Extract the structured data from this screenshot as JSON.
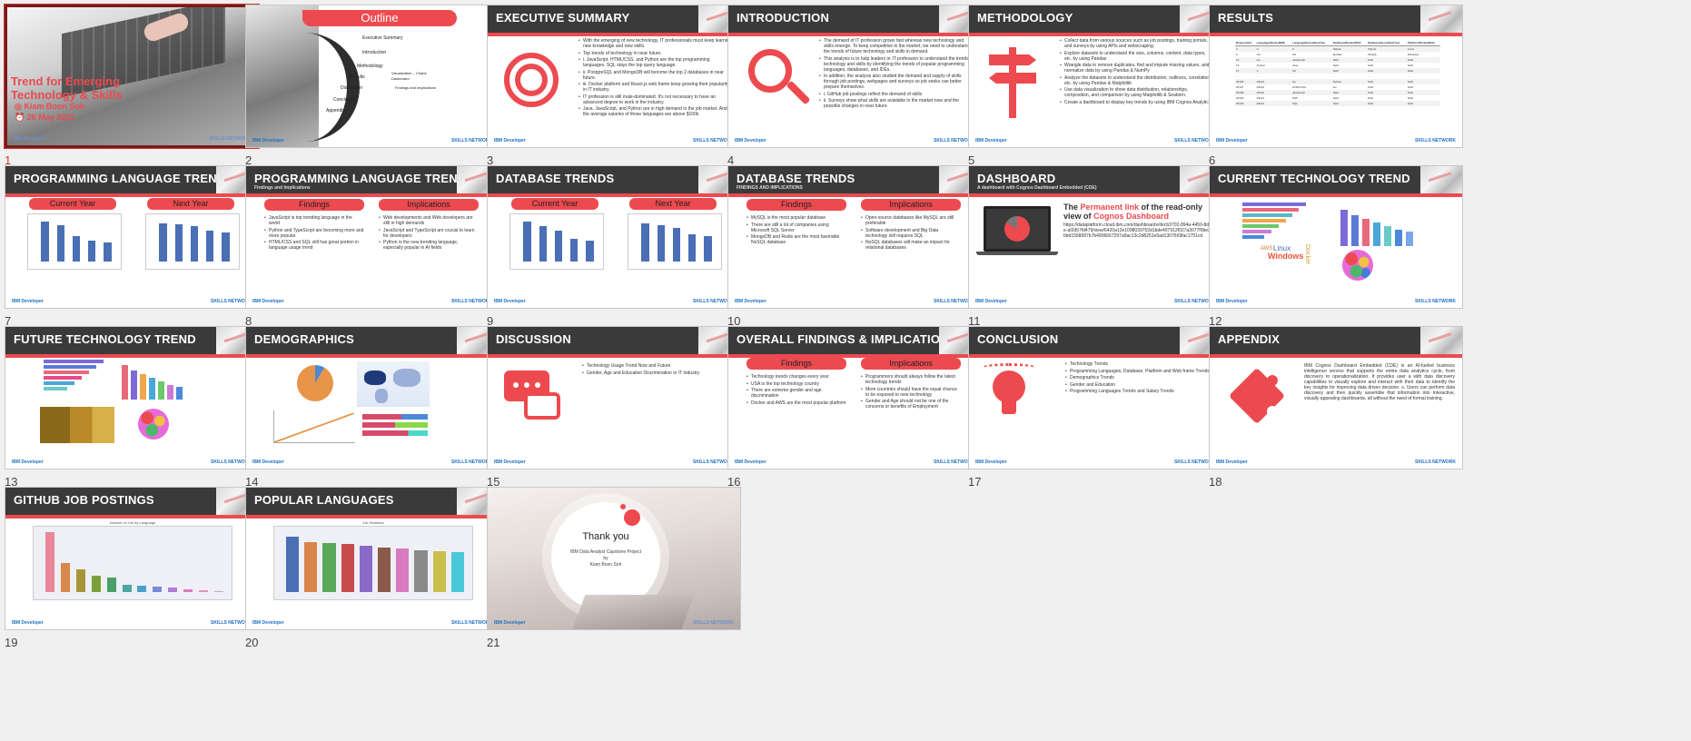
{
  "footer": {
    "ibm": "IBM Developer",
    "skills": "SKILLS NETWORK"
  },
  "colors": {
    "accent": "#ec4a4f",
    "header": "#3a3a3a",
    "selection": "#7a1a1a"
  },
  "slides": {
    "s1": {
      "number": "1",
      "title": "Trend for Emerging Technology & Skills",
      "author": "Kiam Boon Soh",
      "date": "26 May 2021"
    },
    "s2": {
      "number": "2",
      "title": "Outline",
      "items": [
        "Executive Summary",
        "Introduction",
        "Methodology",
        "Results",
        "Visualization – Charts",
        "Dashboard",
        "Discussion",
        "Findings and Implications",
        "Conclusion",
        "Appendix"
      ]
    },
    "s3": {
      "number": "3",
      "title": "EXECUTIVE SUMMARY",
      "icon": "target-icon",
      "bullets": [
        "With the emerging of new technology, IT professionals must keep learning new knowledge and new skills.",
        "Top trends of technology in near future.",
        "i. JavaScript, HTML/CSS, and Python are the top programming languages. SQL stays the top query language.",
        "ii. PostgreSQL and MongoDB will become the top 2 databases in near future.",
        "iii. Docker platform and React.js web frame keep growing their popularity in IT industry.",
        "IT profession is still male-dominated. It's not necessary to have an advanced degree to work in the industry.",
        "Java, JavaScript, and Python are in high demand in the job market. And the average salaries of those languages are above $100k."
      ]
    },
    "s4": {
      "number": "4",
      "title": "INTRODUCTION",
      "icon": "magnifier-icon",
      "bullets": [
        "The demand of IT profession grows fast whereas new technology and skills emerge. To keep competitive in the market, we need to understand the trends of future technology and skills in demand.",
        "This analysis is to help leaders or IT profession to understand the trends in technology and skills by identifying the trends of popular programming languages, databases, and IDEs.",
        "In addition, the analysis also studied the demand and supply of skills through job postings, webpages and surveys so job seeks can better prepare themselves.",
        "i. GitHub job postings reflect the demand of skills",
        "ii. Surveys show what skills are available in the market now and the possible changes in near future."
      ]
    },
    "s5": {
      "number": "5",
      "title": "METHODOLOGY",
      "icon": "signpost-icon",
      "bullets": [
        "Collect data from various sources such as job postings, training portals, and surveys by using APIs and webscraping.",
        "Explore datasets to understand the size, columns, content, data types, etc. by using Pandas",
        "Wrangle data to remove duplicates, find and impute missing values, and to normalize data by using Pandas & NumPy",
        "Analyze the datasets to understand the distribution, outliners, correlation, etc. by using Pandas & Matplotlib",
        "Use data visualization to show data distribution, relationships, composition, and comparison by using Matplotlib & Seaborn.",
        "Create a dashboard to display key trends by using IBM Cognos Analytics."
      ]
    },
    "s6": {
      "number": "6",
      "title": "RESULTS",
      "table_headers": [
        "Respondent",
        "LanguageWorkedWith",
        "LanguageDesireNextYear",
        "DatabaseWorkedWith",
        "DatabaseDesireNextYear",
        "PlatformWorkedWith"
      ],
      "table_rows": [
        [
          "4",
          "C",
          "C",
          "SQLite",
          "SQLite",
          "Linux"
        ],
        [
          "9",
          "C#",
          "C#",
          "MySQL",
          "MySQL",
          "Windows"
        ],
        [
          "13",
          "Go",
          "JavaScript",
          "NaN",
          "NaN",
          "NaN"
        ],
        [
          "16",
          "Python",
          "Java",
          "NaN",
          "NaN",
          "NaN"
        ],
        [
          "17",
          "C",
          "C#",
          "NaN",
          "NaN",
          "NaN"
        ],
        [
          "...",
          "...",
          "...",
          "...",
          "...",
          "..."
        ],
        [
          "25136",
          "25142",
          "Go",
          "Python",
          "NaN",
          "NaN"
        ],
        [
          "25137",
          "25142",
          "HTML/CSS",
          "Go",
          "NaN",
          "NaN"
        ],
        [
          "25138",
          "25142",
          "JavaScript",
          "NaN",
          "NaN",
          "NaN"
        ],
        [
          "25139",
          "25142",
          "PHP",
          "NaN",
          "NaN",
          "NaN"
        ],
        [
          "25140",
          "25142",
          "SQL",
          "NaN",
          "NaN",
          "NaN"
        ]
      ]
    },
    "s7": {
      "number": "7",
      "title": "PROGRAMMING LANGUAGE TRENDS",
      "left": "Current Year",
      "right": "Next Year",
      "current_values": [
        0.95,
        0.88,
        0.6,
        0.5,
        0.45
      ],
      "next_values": [
        0.92,
        0.9,
        0.85,
        0.75,
        0.7
      ]
    },
    "s8": {
      "number": "8",
      "title": "PROGRAMMING LANGUAGE TRENDS",
      "subtitle": "Findings and Implications",
      "left": "Findings",
      "right": "Implications",
      "findings": [
        "JavaScript is top trending language in the world",
        "Python and TypeScript are becoming more and more popular",
        "HTML/CSS and SQL still has great portion in language usage trend"
      ],
      "implications": [
        "Web developments and Web developers are still in high demands",
        "JavaScript and TypeScript are crucial to learn for developers",
        "Python is the new trending language, especially popular in AI fields"
      ]
    },
    "s9": {
      "number": "9",
      "title": "DATABASE TRENDS",
      "left": "Current Year",
      "right": "Next Year",
      "current_values": [
        0.95,
        0.85,
        0.75,
        0.55,
        0.5
      ],
      "next_values": [
        0.92,
        0.88,
        0.8,
        0.65,
        0.6
      ]
    },
    "s10": {
      "number": "10",
      "title": "DATABASE TRENDS",
      "subtitle": "FINDINGS AND IMPLICATIONS",
      "left": "Findings",
      "right": "Implications",
      "findings": [
        "MySQL is the most popular database",
        "There are still a lot of companies using Microsoft SQL Server",
        "MongoDB and Redis are the most favorable NoSQL database"
      ],
      "implications": [
        "Open-source databases like MySQL are still preferable",
        "Software development and Big Data technology still requires SQL",
        "NoSQL databases will make an impact for relational databases"
      ]
    },
    "s11": {
      "number": "11",
      "title": "DASHBOARD",
      "subtitle": "A dashboard with Cognos Dashboard Embedded (CDE)",
      "link_prefix": "The ",
      "link_word": "Permanent link",
      "link_mid": " of the read-only view of ",
      "link_brand": "Cognos Dashboard",
      "url": "https://dataplatform.cloud.ibm.com/dashboards/decb3702-894a-4450-8d2e-af2d57fd479/view/6420a12e1098039753d1bde407912f027a3077f0be3bbd1558687b7b4906667297a9ac13c2d8251e5ad1307669fac1751cd"
    },
    "s12": {
      "number": "12",
      "title": "CURRENT TECHNOLOGY TREND",
      "words": [
        "AWS",
        "Linux",
        "Windows",
        "Docker"
      ]
    },
    "s13": {
      "number": "13",
      "title": "FUTURE TECHNOLOGY TREND"
    },
    "s14": {
      "number": "14",
      "title": "DEMOGRAPHICS"
    },
    "s15": {
      "number": "15",
      "title": "DISCUSSION",
      "icon": "chat-bubbles-icon",
      "bullets": [
        "Technology Usage Trend Now and Future",
        "Gender, Age and Education Discrimination in IT Industry"
      ]
    },
    "s16": {
      "number": "16",
      "title": "OVERALL FINDINGS & IMPLICATIONS",
      "left": "Findings",
      "right": "Implications",
      "findings": [
        "Technology trends changes every year",
        "USA is the top technology country",
        "There are extreme gender and age discrimination",
        "Docker and AWS are the most popular platform"
      ],
      "implications": [
        "Programmers should always follow the latest technology trends",
        "More countries should have the equal chance to be exposed to new technology",
        "Gender and Age should not be one of the concerns or benefits of Employment"
      ]
    },
    "s17": {
      "number": "17",
      "title": "CONCLUSION",
      "icon": "lightbulb-icon",
      "bullets": [
        "Technology Trends",
        "Programming Languages, Database, Platform and Web frame Trends",
        "Demographics Trends",
        "Gender and Education",
        "Programming Languages Trends and Salary Trends"
      ]
    },
    "s18": {
      "number": "18",
      "title": "APPENDIX",
      "icon": "puzzle-icon",
      "text": "IBM Cognos Dashboard Embedded (CDE) is an AI-fueled business intelligence service that supports the entire data analytics cycle, from discovery to operationalization. It provides user a with data discovery capabilities to visually explore and interact with their data to identify the key insights for improving data driven decision. s. Users can perform data discovery and then quickly assemble that information into interactive, visually appealing dashboards, all without the need of formal training."
    },
    "s19": {
      "number": "19",
      "title": "GITHUB JOB POSTINGS",
      "chart_title": "Number of Job by Language",
      "values": [
        1,
        0.48,
        0.38,
        0.28,
        0.25,
        0.12,
        0.1,
        0.09,
        0.08,
        0.04,
        0.03,
        0.02
      ]
    },
    "s20": {
      "number": "20",
      "title": "POPULAR LANGUAGES",
      "chart_title": "Job Statistics",
      "values": [
        0.92,
        0.84,
        0.82,
        0.8,
        0.77,
        0.74,
        0.72,
        0.7,
        0.68,
        0.67
      ]
    },
    "s21": {
      "number": "21",
      "title": "Thank you",
      "line1": "IBM Data Analyst Capstone Project",
      "line2": "by",
      "line3": "Kiam Boon Soh"
    }
  }
}
